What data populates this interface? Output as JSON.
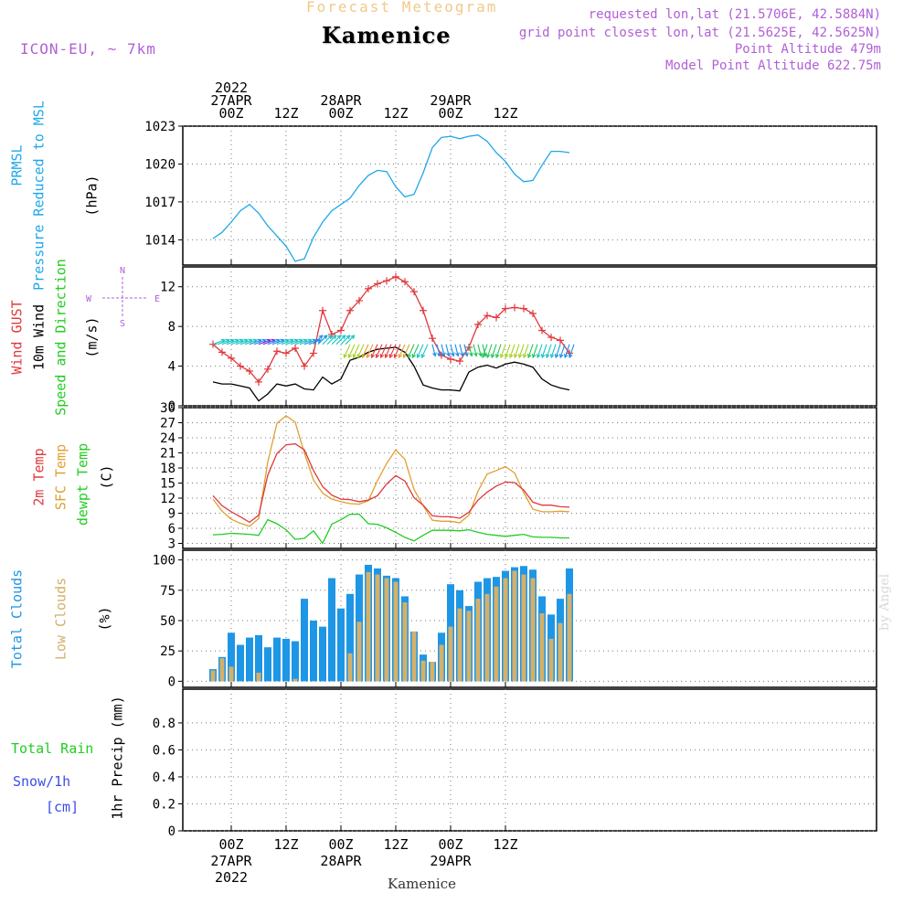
{
  "header": {
    "title": "Forecast Meteogram",
    "station": "Kamenice",
    "model": "ICON-EU, ~ 7km",
    "requested": "requested lon,lat (21.5706E, 42.5884N)",
    "gridpoint": "grid point closest lon,lat (21.5625E, 42.5625N)",
    "point_altitude": "Point Altitude 479m",
    "model_altitude": "Model Point Altitude 622.75m"
  },
  "footer": {
    "station": "Kamenice",
    "credit": "by Angel"
  },
  "time_axis": {
    "top": [
      {
        "lines": [
          "2022",
          "27APR",
          "00Z"
        ]
      },
      {
        "lines": [
          "12Z"
        ]
      },
      {
        "lines": [
          "28APR",
          "00Z"
        ]
      },
      {
        "lines": [
          "12Z"
        ]
      },
      {
        "lines": [
          "29APR",
          "00Z"
        ]
      },
      {
        "lines": [
          "12Z"
        ]
      }
    ],
    "bottom": [
      {
        "lines": [
          "00Z",
          "27APR",
          "2022"
        ]
      },
      {
        "lines": [
          "12Z"
        ]
      },
      {
        "lines": [
          "00Z",
          "28APR"
        ]
      },
      {
        "lines": [
          "12Z"
        ]
      },
      {
        "lines": [
          "00Z",
          "29APR"
        ]
      },
      {
        "lines": [
          "12Z"
        ]
      }
    ]
  },
  "panel_labels": {
    "pressure": {
      "left1": "PRMSL",
      "left2": "Pressure Reduced to MSL",
      "unit": "(hPa)"
    },
    "wind": {
      "gust": "Wind GUST",
      "wind": "10m Wind",
      "dir": "Speed and Direction",
      "unit": "(m/s)",
      "compass": [
        "N",
        "E",
        "S",
        "W"
      ]
    },
    "temp": {
      "t2m": "2m Temp",
      "sfc": "SFC Temp",
      "dew": "dewpt Temp",
      "unit": "(C)"
    },
    "clouds": {
      "total": "Total Clouds",
      "low": "Low Clouds",
      "unit": "(%)"
    },
    "precip": {
      "rain": "Total  Rain",
      "snow": "Snow/1h",
      "snow_unit": "[cm]",
      "axis": "1hr Precip (mm)"
    }
  },
  "colors": {
    "pressure": "#1ea7ea",
    "gust": "#e0393c",
    "wind": "#000000",
    "temp2m": "#e0393c",
    "sfc": "#e0a030",
    "dew": "#22cc22",
    "total_cloud": "#1e96e6",
    "low_cloud": "#d4b06a",
    "rain": "#22cc22",
    "snow": "#3b4ee8",
    "purple": "#b15fd6"
  },
  "chart_data": [
    {
      "type": "line",
      "name_label": "PRMSL",
      "ylabel": "(hPa)",
      "ylim": [
        1012,
        1023
      ],
      "yticks": [
        1014,
        1017,
        1020,
        1023
      ],
      "x_hours_from_0427_00Z": [
        -4,
        -2,
        0,
        2,
        4,
        6,
        8,
        10,
        12,
        14,
        16,
        18,
        20,
        22,
        24,
        26,
        28,
        30,
        32,
        34,
        36,
        38,
        40,
        42,
        44,
        46,
        48,
        50,
        52,
        54,
        56,
        58,
        60,
        62,
        64,
        66,
        68,
        70,
        72,
        74
      ],
      "series": [
        {
          "values": [
            1014.1,
            1014.6,
            1015.4,
            1016.3,
            1016.8,
            1016.1,
            1015.1,
            1014.3,
            1013.5,
            1012.3,
            1012.5,
            1014.2,
            1015.4,
            1016.3,
            1016.8,
            1017.3,
            1018.3,
            1019.1,
            1019.5,
            1019.4,
            1018.2,
            1017.4,
            1017.6,
            1019.3,
            1021.3,
            1022.1,
            1022.2,
            1022.0,
            1022.2,
            1022.3,
            1021.8,
            1020.9,
            1020.2,
            1019.2,
            1018.6,
            1018.7,
            1019.9,
            1021.0,
            1021.0,
            1020.9
          ]
        }
      ]
    },
    {
      "type": "line",
      "ylabel": "(m/s)",
      "ylim": [
        0,
        14
      ],
      "yticks": [
        0,
        4,
        8,
        12
      ],
      "x_hours_from_0427_00Z": [
        -4,
        -2,
        0,
        2,
        4,
        6,
        8,
        10,
        12,
        14,
        16,
        18,
        20,
        22,
        24,
        26,
        28,
        30,
        32,
        34,
        36,
        38,
        40,
        42,
        44,
        46,
        48,
        50,
        52,
        54,
        56,
        58,
        60,
        62,
        64,
        66,
        68,
        70,
        72,
        74
      ],
      "series": [
        {
          "name": "Wind GUST",
          "values": [
            6.2,
            5.4,
            4.8,
            4.0,
            3.5,
            2.4,
            3.7,
            5.5,
            5.3,
            5.8,
            4.0,
            5.3,
            9.6,
            7.2,
            7.6,
            9.6,
            10.6,
            11.8,
            12.3,
            12.6,
            13.0,
            12.5,
            11.5,
            9.6,
            6.8,
            5.1,
            4.7,
            4.5,
            5.9,
            8.2,
            9.1,
            8.9,
            9.8,
            9.9,
            9.8,
            9.3,
            7.6,
            6.9,
            6.6,
            5.3
          ]
        },
        {
          "name": "10m Wind",
          "values": [
            2.4,
            2.2,
            2.2,
            2.0,
            1.8,
            0.5,
            1.2,
            2.2,
            2.0,
            2.2,
            1.7,
            1.6,
            2.9,
            2.2,
            2.7,
            4.6,
            4.9,
            5.4,
            5.7,
            5.8,
            5.9,
            5.4,
            4.0,
            2.1,
            1.8,
            1.6,
            1.6,
            1.5,
            3.4,
            3.9,
            4.1,
            3.8,
            4.2,
            4.4,
            4.2,
            3.9,
            2.7,
            2.1,
            1.8,
            1.6
          ]
        }
      ]
    },
    {
      "type": "line",
      "ylabel": "(C)",
      "ylim": [
        2,
        30
      ],
      "yticks": [
        3,
        6,
        9,
        12,
        15,
        18,
        21,
        24,
        27,
        30
      ],
      "x_hours_from_0427_00Z": [
        -4,
        -2,
        0,
        2,
        4,
        6,
        8,
        10,
        12,
        14,
        16,
        18,
        20,
        22,
        24,
        26,
        28,
        30,
        32,
        34,
        36,
        38,
        40,
        42,
        44,
        46,
        48,
        50,
        52,
        54,
        56,
        58,
        60,
        62,
        64,
        66,
        68,
        70,
        72,
        74
      ],
      "series": [
        {
          "name": "2m Temp",
          "values": [
            12.5,
            10.5,
            9.3,
            8.3,
            7.2,
            8.6,
            16.6,
            20.9,
            22.6,
            22.8,
            21.6,
            17.5,
            14.3,
            12.6,
            11.8,
            11.7,
            11.3,
            11.6,
            12.5,
            14.8,
            16.5,
            15.4,
            12.1,
            10.6,
            8.5,
            8.3,
            8.3,
            8.0,
            9.2,
            11.6,
            13.2,
            14.4,
            15.2,
            15.1,
            13.6,
            11.2,
            10.6,
            10.6,
            10.3,
            10.2
          ]
        },
        {
          "name": "SFC Temp",
          "values": [
            11.8,
            9.4,
            7.8,
            7.0,
            6.4,
            7.9,
            19.2,
            26.9,
            28.4,
            27.1,
            21.0,
            15.6,
            13.0,
            11.8,
            11.3,
            10.9,
            10.8,
            11.5,
            15.5,
            18.9,
            21.6,
            19.7,
            13.7,
            10.5,
            7.6,
            7.4,
            7.4,
            7.1,
            8.6,
            13.4,
            16.8,
            17.5,
            18.3,
            17.0,
            13.1,
            9.8,
            9.3,
            9.3,
            9.4,
            9.3
          ]
        },
        {
          "name": "dewpt Temp",
          "values": [
            4.7,
            4.8,
            5.0,
            4.9,
            4.8,
            4.6,
            7.7,
            6.9,
            5.7,
            3.8,
            4.0,
            5.5,
            3.0,
            6.8,
            7.7,
            8.8,
            8.8,
            6.9,
            6.8,
            6.1,
            5.2,
            4.2,
            3.5,
            4.6,
            5.6,
            5.6,
            5.6,
            5.5,
            5.7,
            5.2,
            4.8,
            4.6,
            4.4,
            4.6,
            4.8,
            4.3,
            4.2,
            4.2,
            4.1,
            4.1
          ]
        }
      ]
    },
    {
      "type": "bar",
      "ylabel": "(%)",
      "ylim": [
        0,
        100
      ],
      "yticks": [
        0,
        25,
        50,
        75,
        100
      ],
      "x_hours_from_0427_00Z": [
        -4,
        -2,
        0,
        2,
        4,
        6,
        8,
        10,
        12,
        14,
        16,
        18,
        20,
        22,
        24,
        26,
        28,
        30,
        32,
        34,
        36,
        38,
        40,
        42,
        44,
        46,
        48,
        50,
        52,
        54,
        56,
        58,
        60,
        62,
        64,
        66,
        68,
        70,
        72,
        74
      ],
      "series": [
        {
          "name": "Total Clouds",
          "values": [
            10,
            20,
            40,
            30,
            36,
            38,
            28,
            36,
            35,
            33,
            68,
            50,
            45,
            85,
            60,
            72,
            88,
            96,
            93,
            87,
            85,
            70,
            41,
            22,
            16,
            40,
            80,
            75,
            62,
            82,
            85,
            86,
            91,
            94,
            95,
            92,
            70,
            55,
            68,
            93
          ]
        },
        {
          "name": "Low Clouds",
          "values": [
            9,
            19,
            12,
            0,
            0,
            7,
            0,
            0,
            0,
            2,
            0,
            0,
            0,
            0,
            0,
            23,
            49,
            90,
            88,
            85,
            82,
            65,
            41,
            17,
            16,
            30,
            45,
            60,
            58,
            68,
            72,
            78,
            85,
            91,
            88,
            85,
            56,
            35,
            48,
            72
          ]
        }
      ]
    },
    {
      "type": "bar",
      "ylabel": "1hr Precip (mm)",
      "ylim": [
        0,
        1
      ],
      "yticks": [
        0,
        0.2,
        0.4,
        0.6,
        0.8
      ],
      "series": [
        {
          "name": "Total  Rain",
          "values": []
        },
        {
          "name": "Snow/1h",
          "values": []
        }
      ]
    }
  ]
}
